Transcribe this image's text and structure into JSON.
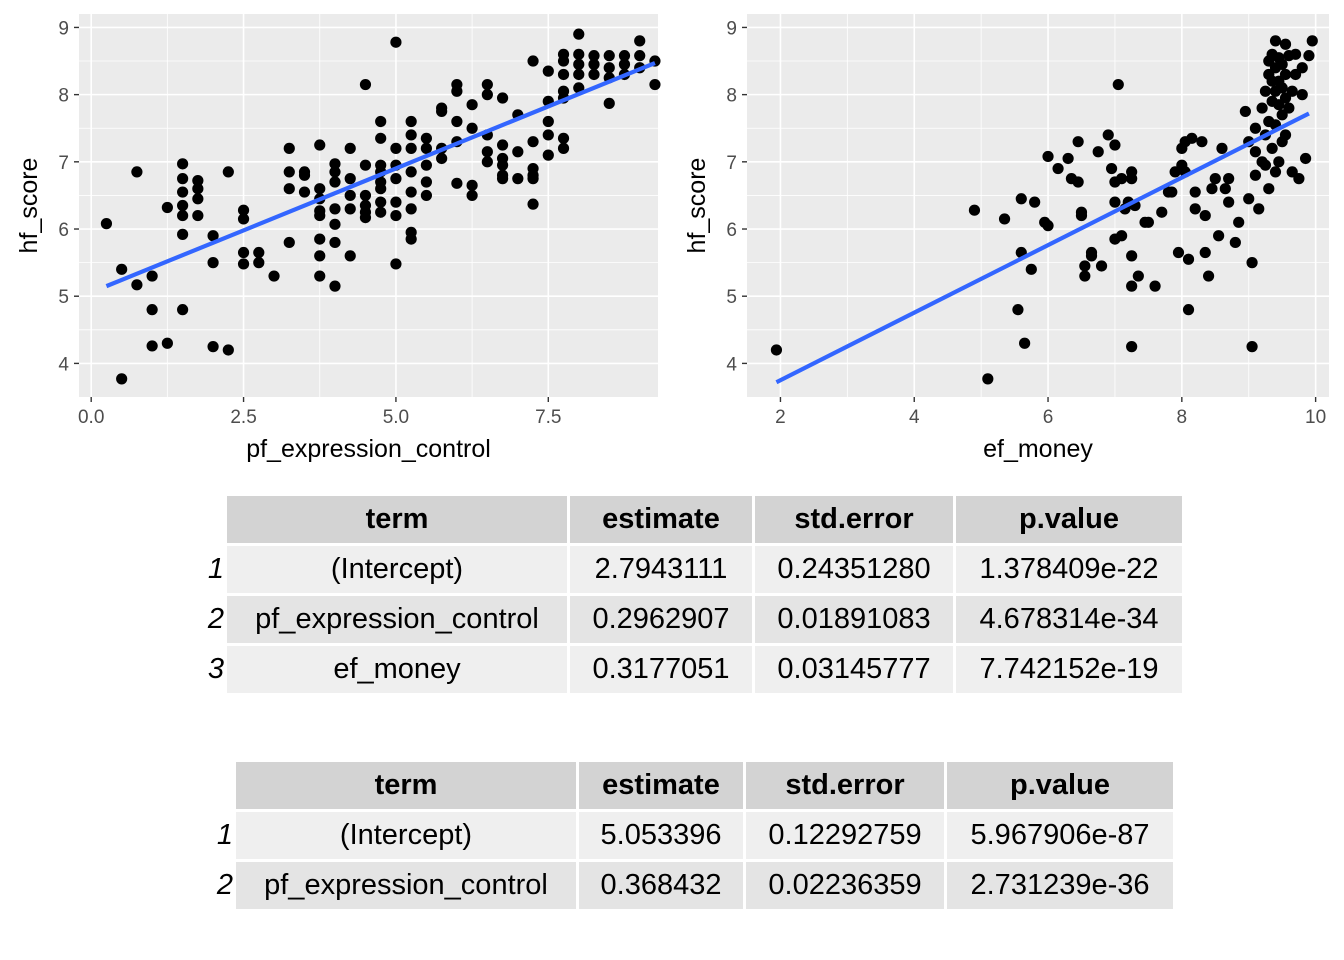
{
  "chart_data": [
    {
      "type": "scatter",
      "xlabel": "pf_expression_control",
      "ylabel": "hf_score",
      "xlim": [
        -0.2,
        9.3
      ],
      "ylim": [
        3.5,
        9.2
      ],
      "xticks": [
        "0.0",
        "2.5",
        "5.0",
        "7.5"
      ],
      "xtick_values": [
        0,
        2.5,
        5,
        7.5
      ],
      "yticks": [
        "4",
        "5",
        "6",
        "7",
        "8",
        "9"
      ],
      "ytick_values": [
        4,
        5,
        6,
        7,
        8,
        9
      ],
      "fit_line": {
        "x": [
          0.25,
          9.25
        ],
        "y": [
          5.15,
          8.47
        ],
        "color": "#3366ff"
      },
      "points": [
        [
          0.25,
          6.08
        ],
        [
          0.5,
          5.4
        ],
        [
          0.5,
          3.77
        ],
        [
          0.75,
          6.85
        ],
        [
          0.75,
          5.17
        ],
        [
          1,
          5.3
        ],
        [
          1,
          4.8
        ],
        [
          1,
          4.26
        ],
        [
          1.25,
          6.32
        ],
        [
          1.25,
          4.3
        ],
        [
          1.5,
          6.97
        ],
        [
          1.5,
          6.75
        ],
        [
          1.5,
          6.55
        ],
        [
          1.5,
          6.35
        ],
        [
          1.5,
          6.2
        ],
        [
          1.5,
          5.92
        ],
        [
          1.5,
          4.8
        ],
        [
          1.75,
          6.72
        ],
        [
          1.75,
          6.6
        ],
        [
          1.75,
          6.45
        ],
        [
          1.75,
          6.2
        ],
        [
          2,
          5.9
        ],
        [
          2,
          5.5
        ],
        [
          2,
          4.25
        ],
        [
          2.25,
          6.85
        ],
        [
          2.25,
          4.2
        ],
        [
          2.5,
          6.28
        ],
        [
          2.5,
          6.15
        ],
        [
          2.5,
          5.65
        ],
        [
          2.5,
          5.48
        ],
        [
          2.75,
          5.65
        ],
        [
          2.75,
          5.5
        ],
        [
          3,
          5.3
        ],
        [
          3.25,
          7.2
        ],
        [
          3.25,
          6.85
        ],
        [
          3.25,
          6.6
        ],
        [
          3.25,
          5.8
        ],
        [
          3.5,
          6.85
        ],
        [
          3.5,
          6.8
        ],
        [
          3.5,
          6.55
        ],
        [
          3.75,
          7.25
        ],
        [
          3.75,
          6.6
        ],
        [
          3.75,
          6.45
        ],
        [
          3.75,
          6.27
        ],
        [
          3.75,
          6.2
        ],
        [
          3.75,
          5.85
        ],
        [
          3.75,
          5.6
        ],
        [
          3.75,
          5.3
        ],
        [
          4,
          6.97
        ],
        [
          4,
          6.85
        ],
        [
          4,
          6.7
        ],
        [
          4,
          6.3
        ],
        [
          4,
          6.07
        ],
        [
          4,
          5.8
        ],
        [
          4,
          5.15
        ],
        [
          4.25,
          7.2
        ],
        [
          4.25,
          6.75
        ],
        [
          4.25,
          6.5
        ],
        [
          4.25,
          6.3
        ],
        [
          4.25,
          5.6
        ],
        [
          4.5,
          8.15
        ],
        [
          4.5,
          6.95
        ],
        [
          4.5,
          6.5
        ],
        [
          4.5,
          6.35
        ],
        [
          4.5,
          6.25
        ],
        [
          4.5,
          6.17
        ],
        [
          4.75,
          7.6
        ],
        [
          4.75,
          7.35
        ],
        [
          4.75,
          6.95
        ],
        [
          4.75,
          6.85
        ],
        [
          4.75,
          6.7
        ],
        [
          4.75,
          6.6
        ],
        [
          4.75,
          6.4
        ],
        [
          4.75,
          6.25
        ],
        [
          5,
          8.78
        ],
        [
          5,
          7.2
        ],
        [
          5,
          6.95
        ],
        [
          5,
          6.75
        ],
        [
          5,
          6.4
        ],
        [
          5,
          6.2
        ],
        [
          5,
          5.48
        ],
        [
          5.25,
          7.6
        ],
        [
          5.25,
          7.4
        ],
        [
          5.25,
          7.2
        ],
        [
          5.25,
          6.85
        ],
        [
          5.25,
          6.55
        ],
        [
          5.25,
          6.3
        ],
        [
          5.25,
          5.95
        ],
        [
          5.25,
          5.85
        ],
        [
          5.5,
          7.35
        ],
        [
          5.5,
          7.2
        ],
        [
          5.5,
          6.95
        ],
        [
          5.5,
          6.7
        ],
        [
          5.5,
          6.5
        ],
        [
          5.75,
          7.8
        ],
        [
          5.75,
          7.75
        ],
        [
          5.75,
          7.2
        ],
        [
          5.75,
          7.05
        ],
        [
          6,
          8.15
        ],
        [
          6,
          8.05
        ],
        [
          6,
          7.6
        ],
        [
          6,
          7.3
        ],
        [
          6,
          6.68
        ],
        [
          6.25,
          7.85
        ],
        [
          6.25,
          7.5
        ],
        [
          6.25,
          6.65
        ],
        [
          6.25,
          6.5
        ],
        [
          6.5,
          8.15
        ],
        [
          6.5,
          8
        ],
        [
          6.5,
          7.4
        ],
        [
          6.5,
          7.15
        ],
        [
          6.5,
          7
        ],
        [
          6.75,
          7.95
        ],
        [
          6.75,
          7.25
        ],
        [
          6.75,
          7.05
        ],
        [
          6.75,
          6.95
        ],
        [
          6.75,
          6.8
        ],
        [
          6.75,
          6.75
        ],
        [
          7,
          7.7
        ],
        [
          7,
          7.15
        ],
        [
          7,
          6.75
        ],
        [
          7.25,
          8.5
        ],
        [
          7.25,
          7.3
        ],
        [
          7.25,
          6.9
        ],
        [
          7.25,
          6.8
        ],
        [
          7.25,
          6.75
        ],
        [
          7.25,
          6.37
        ],
        [
          7.5,
          8.35
        ],
        [
          7.5,
          7.9
        ],
        [
          7.5,
          7.6
        ],
        [
          7.5,
          7.4
        ],
        [
          7.5,
          7.1
        ],
        [
          7.75,
          8.6
        ],
        [
          7.75,
          8.5
        ],
        [
          7.75,
          8.3
        ],
        [
          7.75,
          8.05
        ],
        [
          7.75,
          7.95
        ],
        [
          7.75,
          7.35
        ],
        [
          7.75,
          7.2
        ],
        [
          8,
          8.9
        ],
        [
          8,
          8.6
        ],
        [
          8,
          8.45
        ],
        [
          8,
          8.3
        ],
        [
          8,
          8.1
        ],
        [
          8.25,
          8.58
        ],
        [
          8.25,
          8.45
        ],
        [
          8.25,
          8.3
        ],
        [
          8.5,
          8.58
        ],
        [
          8.5,
          8.4
        ],
        [
          8.5,
          8.25
        ],
        [
          8.5,
          7.87
        ],
        [
          8.75,
          8.58
        ],
        [
          8.75,
          8.45
        ],
        [
          8.75,
          8.3
        ],
        [
          9,
          8.8
        ],
        [
          9,
          8.58
        ],
        [
          9,
          8.4
        ],
        [
          9.25,
          8.5
        ],
        [
          9.25,
          8.15
        ]
      ]
    },
    {
      "type": "scatter",
      "xlabel": "ef_money",
      "ylabel": "hf_score",
      "xlim": [
        1.5,
        10.2
      ],
      "ylim": [
        3.5,
        9.2
      ],
      "xticks": [
        "2",
        "4",
        "6",
        "8",
        "10"
      ],
      "xtick_values": [
        2,
        4,
        6,
        8,
        10
      ],
      "yticks": [
        "4",
        "5",
        "6",
        "7",
        "8",
        "9"
      ],
      "ytick_values": [
        4,
        5,
        6,
        7,
        8,
        9
      ],
      "fit_line": {
        "x": [
          1.94,
          9.9
        ],
        "y": [
          3.72,
          7.72
        ],
        "color": "#3366ff"
      },
      "points": [
        [
          1.94,
          4.2
        ],
        [
          4.9,
          6.28
        ],
        [
          5.1,
          3.77
        ],
        [
          5.35,
          6.15
        ],
        [
          5.55,
          4.8
        ],
        [
          5.6,
          5.65
        ],
        [
          5.6,
          6.45
        ],
        [
          5.65,
          4.3
        ],
        [
          5.75,
          5.4
        ],
        [
          5.8,
          6.4
        ],
        [
          5.95,
          6.1
        ],
        [
          6,
          6.05
        ],
        [
          6,
          7.08
        ],
        [
          6.15,
          6.9
        ],
        [
          6.3,
          7.05
        ],
        [
          6.35,
          6.75
        ],
        [
          6.45,
          7.3
        ],
        [
          6.45,
          6.7
        ],
        [
          6.5,
          6.2
        ],
        [
          6.5,
          6.25
        ],
        [
          6.55,
          5.45
        ],
        [
          6.55,
          5.3
        ],
        [
          6.65,
          5.6
        ],
        [
          6.65,
          5.65
        ],
        [
          6.75,
          7.15
        ],
        [
          6.8,
          5.45
        ],
        [
          6.9,
          7.4
        ],
        [
          6.95,
          6.9
        ],
        [
          7,
          7.25
        ],
        [
          7,
          6.7
        ],
        [
          7,
          6.4
        ],
        [
          7,
          5.85
        ],
        [
          7.05,
          8.15
        ],
        [
          7.1,
          6.75
        ],
        [
          7.1,
          5.9
        ],
        [
          7.15,
          6.3
        ],
        [
          7.2,
          6.4
        ],
        [
          7.25,
          6.75
        ],
        [
          7.25,
          6.85
        ],
        [
          7.25,
          5.6
        ],
        [
          7.25,
          5.15
        ],
        [
          7.25,
          4.25
        ],
        [
          7.3,
          6.35
        ],
        [
          7.35,
          5.3
        ],
        [
          7.45,
          6.1
        ],
        [
          7.5,
          6.1
        ],
        [
          7.6,
          5.15
        ],
        [
          7.7,
          6.25
        ],
        [
          7.8,
          6.55
        ],
        [
          7.85,
          6.55
        ],
        [
          7.9,
          6.85
        ],
        [
          7.95,
          5.65
        ],
        [
          8,
          7.2
        ],
        [
          8,
          6.95
        ],
        [
          8.05,
          7.3
        ],
        [
          8.05,
          6.85
        ],
        [
          8.1,
          4.8
        ],
        [
          8.1,
          5.55
        ],
        [
          8.15,
          7.35
        ],
        [
          8.2,
          6.55
        ],
        [
          8.2,
          6.3
        ],
        [
          8.3,
          7.3
        ],
        [
          8.35,
          6.2
        ],
        [
          8.35,
          5.65
        ],
        [
          8.4,
          5.3
        ],
        [
          8.45,
          6.6
        ],
        [
          8.5,
          6.75
        ],
        [
          8.55,
          5.9
        ],
        [
          8.6,
          7.2
        ],
        [
          8.65,
          6.6
        ],
        [
          8.7,
          6.75
        ],
        [
          8.7,
          6.4
        ],
        [
          8.8,
          5.8
        ],
        [
          8.85,
          6.1
        ],
        [
          8.95,
          7.75
        ],
        [
          9,
          7.3
        ],
        [
          9,
          6.45
        ],
        [
          9.05,
          5.5
        ],
        [
          9.05,
          4.25
        ],
        [
          9.1,
          7.5
        ],
        [
          9.1,
          7.15
        ],
        [
          9.1,
          6.8
        ],
        [
          9.15,
          6.3
        ],
        [
          9.2,
          7.8
        ],
        [
          9.2,
          7.0
        ],
        [
          9.25,
          8.05
        ],
        [
          9.25,
          7.4
        ],
        [
          9.25,
          6.95
        ],
        [
          9.3,
          8.5
        ],
        [
          9.3,
          8.3
        ],
        [
          9.3,
          7.6
        ],
        [
          9.3,
          6.6
        ],
        [
          9.35,
          8.6
        ],
        [
          9.35,
          8.2
        ],
        [
          9.35,
          7.9
        ],
        [
          9.35,
          7.2
        ],
        [
          9.4,
          8.8
        ],
        [
          9.4,
          8.4
        ],
        [
          9.4,
          8.05
        ],
        [
          9.4,
          7.55
        ],
        [
          9.4,
          6.85
        ],
        [
          9.45,
          8.55
        ],
        [
          9.45,
          8.2
        ],
        [
          9.45,
          7.85
        ],
        [
          9.45,
          7.0
        ],
        [
          9.5,
          8.45
        ],
        [
          9.5,
          8.1
        ],
        [
          9.5,
          7.7
        ],
        [
          9.5,
          7.3
        ],
        [
          9.55,
          8.75
        ],
        [
          9.55,
          8.3
        ],
        [
          9.55,
          7.95
        ],
        [
          9.55,
          7.4
        ],
        [
          9.6,
          8.58
        ],
        [
          9.6,
          7.8
        ],
        [
          9.65,
          8.05
        ],
        [
          9.65,
          6.85
        ],
        [
          9.7,
          8.6
        ],
        [
          9.7,
          8.3
        ],
        [
          9.75,
          6.75
        ],
        [
          9.8,
          8.4
        ],
        [
          9.8,
          8.0
        ],
        [
          9.85,
          7.05
        ],
        [
          9.9,
          8.58
        ],
        [
          9.95,
          8.8
        ]
      ]
    }
  ],
  "tables": [
    {
      "headers": [
        "term",
        "estimate",
        "std.error",
        "p.value"
      ],
      "rows": [
        {
          "n": "1",
          "cells": [
            "(Intercept)",
            "2.7943111",
            "0.24351280",
            "1.378409e-22"
          ]
        },
        {
          "n": "2",
          "cells": [
            "pf_expression_control",
            "0.2962907",
            "0.01891083",
            "4.678314e-34"
          ]
        },
        {
          "n": "3",
          "cells": [
            "ef_money",
            "0.3177051",
            "0.03145777",
            "7.742152e-19"
          ]
        }
      ]
    },
    {
      "headers": [
        "term",
        "estimate",
        "std.error",
        "p.value"
      ],
      "rows": [
        {
          "n": "1",
          "cells": [
            "(Intercept)",
            "5.053396",
            "0.12292759",
            "5.967906e-87"
          ]
        },
        {
          "n": "2",
          "cells": [
            "pf_expression_control",
            "0.368432",
            "0.02236359",
            "2.731239e-36"
          ]
        }
      ]
    }
  ],
  "colors": {
    "panel": "#ebebeb",
    "grid": "#ffffff",
    "point": "#000000",
    "fit": "#3366ff",
    "header": "#d3d3d3"
  }
}
